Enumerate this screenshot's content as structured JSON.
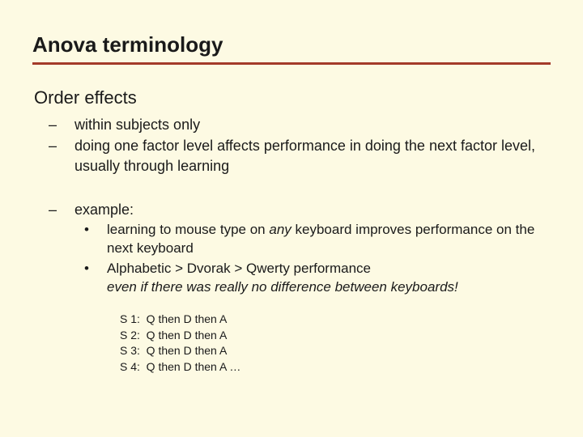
{
  "title": "Anova terminology",
  "subtitle": "Order effects",
  "dash1": "within subjects only",
  "dash2": "doing one factor level affects performance in doing the next factor level, usually through learning",
  "dash3": "example:",
  "bullet1_pre": "learning to mouse type on ",
  "bullet1_italic": "any",
  "bullet1_post": " keyboard improves performance on the next keyboard",
  "bullet2_line1": "Alphabetic > Dvorak > Qwerty performance",
  "bullet2_line2": "even if there was really no difference between keyboards!",
  "seq": {
    "r1": "S 1:  Q then D then A",
    "r2": "S 2:  Q then D then A",
    "r3": "S 3:  Q then D then A",
    "r4": "S 4:  Q then D then A …"
  },
  "colors": {
    "background": "#fdfae3",
    "text": "#1a1a1a",
    "rule": "#a43a2a"
  },
  "typography": {
    "title_size": 26,
    "subtitle_size": 22,
    "dash_size": 18,
    "bullet_size": 17,
    "seq_size": 14,
    "family": "Verdana"
  }
}
